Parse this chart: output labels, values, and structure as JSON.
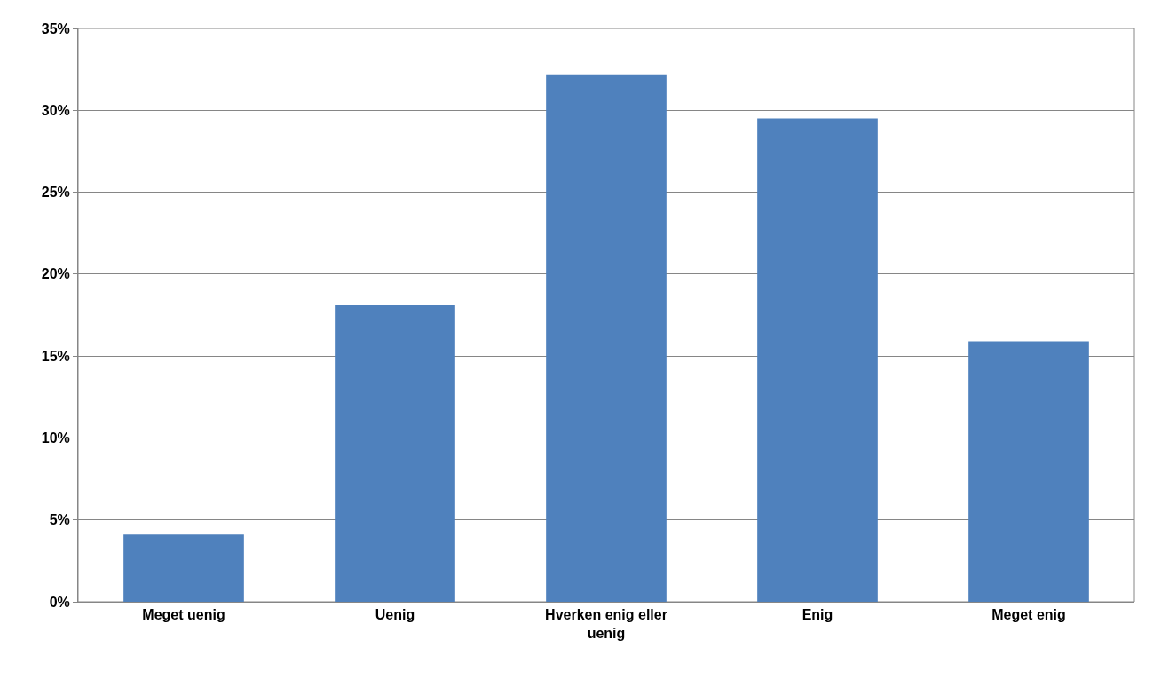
{
  "chart_data": {
    "type": "bar",
    "categories": [
      "Meget uenig",
      "Uenig",
      "Hverken enig eller uenig",
      "Enig",
      "Meget enig"
    ],
    "values": [
      4.1,
      18.1,
      32.2,
      29.5,
      15.9
    ],
    "color": "#4f81bd",
    "ylim": [
      0,
      35
    ],
    "yticks": [
      {
        "value": 0,
        "label": "0%"
      },
      {
        "value": 5,
        "label": "5%"
      },
      {
        "value": 10,
        "label": "10%"
      },
      {
        "value": 15,
        "label": "15%"
      },
      {
        "value": 20,
        "label": "20%"
      },
      {
        "value": 25,
        "label": "25%"
      },
      {
        "value": 30,
        "label": "30%"
      },
      {
        "value": 35,
        "label": "35%"
      }
    ],
    "grid": "y"
  }
}
